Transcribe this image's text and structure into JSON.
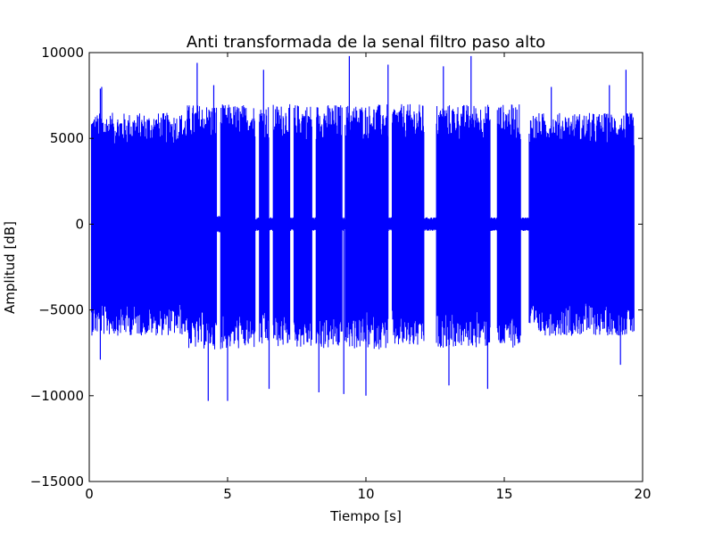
{
  "chart_data": {
    "type": "line",
    "title": "Anti transformada de la senal filtro paso alto",
    "xlabel": "Tiempo [s]",
    "ylabel": "Amplitud [dB]",
    "xlim": [
      0,
      20
    ],
    "ylim": [
      -15000,
      10000
    ],
    "xticks": [
      0,
      5,
      10,
      15,
      20
    ],
    "xtick_labels": [
      "0",
      "5",
      "10",
      "15",
      "20"
    ],
    "yticks": [
      -15000,
      -10000,
      -5000,
      0,
      5000,
      10000
    ],
    "ytick_labels": [
      "−15000",
      "−10000",
      "−5000",
      "0",
      "5000",
      "10000"
    ],
    "grid": false,
    "legend": "none",
    "line_color": "#0000ff",
    "series": [
      {
        "segments": [
          {
            "start": 0.08,
            "end": 3.55,
            "max": 6500,
            "min": -6500
          },
          {
            "start": 3.55,
            "end": 4.6,
            "max": 7000,
            "min": -7300
          },
          {
            "start": 4.6,
            "end": 4.75,
            "max": 500,
            "min": -500
          },
          {
            "start": 4.75,
            "end": 6.0,
            "max": 7000,
            "min": -7300
          },
          {
            "start": 6.0,
            "end": 6.15,
            "max": 400,
            "min": -400
          },
          {
            "start": 6.15,
            "end": 6.5,
            "max": 7000,
            "min": -7200
          },
          {
            "start": 6.5,
            "end": 6.65,
            "max": 400,
            "min": -400
          },
          {
            "start": 6.65,
            "end": 7.25,
            "max": 7000,
            "min": -7200
          },
          {
            "start": 7.25,
            "end": 7.4,
            "max": 400,
            "min": -400
          },
          {
            "start": 7.4,
            "end": 8.05,
            "max": 7000,
            "min": -7200
          },
          {
            "start": 8.05,
            "end": 8.2,
            "max": 400,
            "min": -400
          },
          {
            "start": 8.2,
            "end": 9.15,
            "max": 7000,
            "min": -7300
          },
          {
            "start": 9.15,
            "end": 9.25,
            "max": 400,
            "min": -400
          },
          {
            "start": 9.25,
            "end": 10.8,
            "max": 7000,
            "min": -7300
          },
          {
            "start": 10.8,
            "end": 10.95,
            "max": 400,
            "min": -400
          },
          {
            "start": 10.95,
            "end": 12.1,
            "max": 7000,
            "min": -7200
          },
          {
            "start": 12.1,
            "end": 12.55,
            "max": 400,
            "min": -400
          },
          {
            "start": 12.55,
            "end": 14.5,
            "max": 7000,
            "min": -7200
          },
          {
            "start": 14.5,
            "end": 14.75,
            "max": 400,
            "min": -400
          },
          {
            "start": 14.75,
            "end": 15.6,
            "max": 7000,
            "min": -7200
          },
          {
            "start": 15.6,
            "end": 15.9,
            "max": 400,
            "min": -400
          },
          {
            "start": 15.9,
            "end": 19.7,
            "max": 6500,
            "min": -6500
          }
        ],
        "spikes": [
          {
            "x": 0.4,
            "y": 7900
          },
          {
            "x": 0.4,
            "y": -7900
          },
          {
            "x": 0.45,
            "y": 8000
          },
          {
            "x": 3.9,
            "y": 9400
          },
          {
            "x": 4.3,
            "y": -10300
          },
          {
            "x": 4.5,
            "y": 8100
          },
          {
            "x": 5.0,
            "y": -10300
          },
          {
            "x": 6.3,
            "y": 9000
          },
          {
            "x": 6.5,
            "y": -9600
          },
          {
            "x": 8.3,
            "y": -9800
          },
          {
            "x": 9.4,
            "y": 9800
          },
          {
            "x": 9.2,
            "y": -9900
          },
          {
            "x": 10.8,
            "y": 9300
          },
          {
            "x": 10.0,
            "y": -10000
          },
          {
            "x": 12.8,
            "y": 9200
          },
          {
            "x": 13.0,
            "y": -9400
          },
          {
            "x": 13.8,
            "y": 9800
          },
          {
            "x": 14.4,
            "y": -9600
          },
          {
            "x": 16.7,
            "y": 8000
          },
          {
            "x": 18.8,
            "y": 8100
          },
          {
            "x": 19.4,
            "y": 9000
          },
          {
            "x": 19.2,
            "y": -8200
          }
        ]
      }
    ]
  }
}
